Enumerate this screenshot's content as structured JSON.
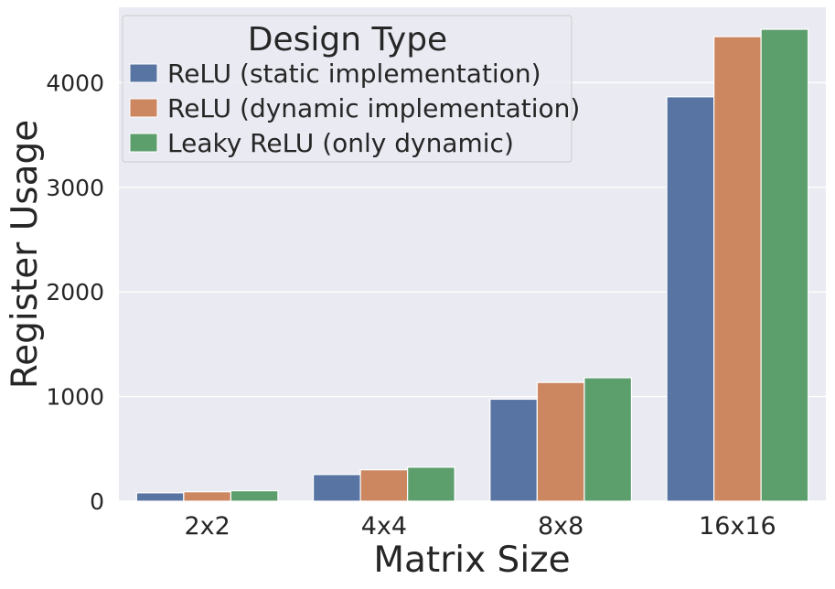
{
  "chart_data": {
    "type": "bar",
    "xlabel": "Matrix Size",
    "ylabel": "Register Usage",
    "categories": [
      "2x2",
      "4x4",
      "8x8",
      "16x16"
    ],
    "series": [
      {
        "name": "ReLU (static implementation)",
        "color": "#5874a3",
        "values": [
          80,
          255,
          975,
          3865
        ]
      },
      {
        "name": "ReLU (dynamic implementation)",
        "color": "#cc8760",
        "values": [
          90,
          300,
          1135,
          4440
        ]
      },
      {
        "name": "Leaky ReLU (only dynamic)",
        "color": "#5c9e6c",
        "values": [
          100,
          325,
          1180,
          4510
        ]
      }
    ],
    "ylim": [
      0,
      4720
    ],
    "yticks": [
      0,
      1000,
      2000,
      3000,
      4000
    ],
    "legend": {
      "title": "Design Type",
      "placement": "top-left"
    },
    "grid": true,
    "background": "#eaeaf2"
  }
}
